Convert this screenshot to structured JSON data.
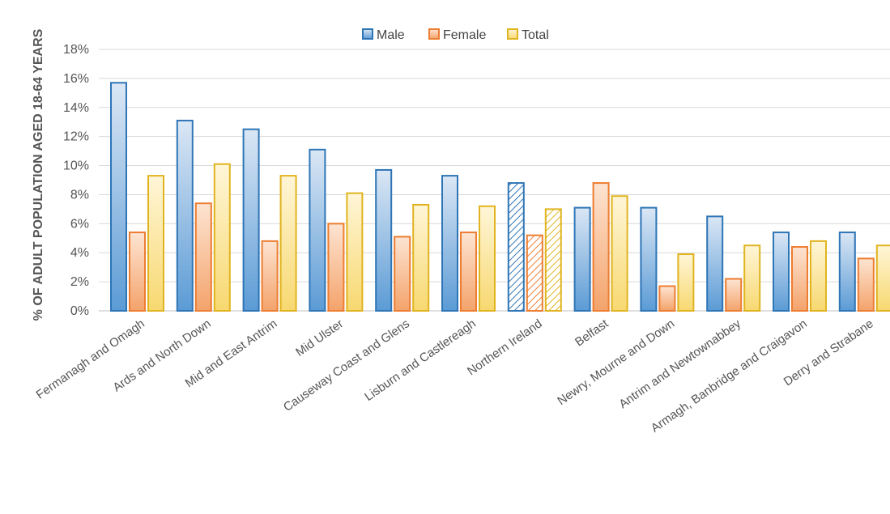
{
  "chart_data": {
    "type": "bar",
    "title": "",
    "xlabel": "",
    "ylabel": "% OF ADULT POPULATION AGED 18-64 YEARS",
    "ylim": [
      0,
      18
    ],
    "y_ticks": [
      "0%",
      "2%",
      "4%",
      "6%",
      "8%",
      "10%",
      "12%",
      "14%",
      "16%",
      "18%"
    ],
    "grid": true,
    "legend_position": "top-center",
    "categories": [
      "Fermanagh and Omagh",
      "Ards and North Down",
      "Mid and East Antrim",
      "Mid Ulster",
      "Causeway Coast and Glens",
      "Lisburn and Castlereagh",
      "Northern Ireland",
      "Belfast",
      "Newry, Mourne and Down",
      "Antrim and Newtownabbey",
      "Armagh, Banbridge and Craigavon",
      "Derry and Strabane"
    ],
    "highlighted_category": "Northern Ireland",
    "series": [
      {
        "name": "Male",
        "values": [
          15.7,
          13.1,
          12.5,
          11.1,
          9.7,
          9.3,
          8.8,
          7.1,
          7.1,
          6.5,
          5.4,
          5.4
        ],
        "color": "#2e75b6",
        "fill_light": "#dbe7f5",
        "fill_dark": "#5b9bd5"
      },
      {
        "name": "Female",
        "values": [
          5.4,
          7.4,
          4.8,
          6.0,
          5.1,
          5.4,
          5.2,
          8.8,
          1.7,
          2.2,
          4.4,
          3.6
        ],
        "color": "#ed7d31",
        "fill_light": "#fde4d2",
        "fill_dark": "#f4a36b"
      },
      {
        "name": "Total",
        "values": [
          9.3,
          10.1,
          9.3,
          8.1,
          7.3,
          7.2,
          7.0,
          7.9,
          3.9,
          4.5,
          4.8,
          4.5
        ],
        "color": "#e0b420",
        "fill_light": "#fff6d8",
        "fill_dark": "#f7d870"
      }
    ]
  }
}
